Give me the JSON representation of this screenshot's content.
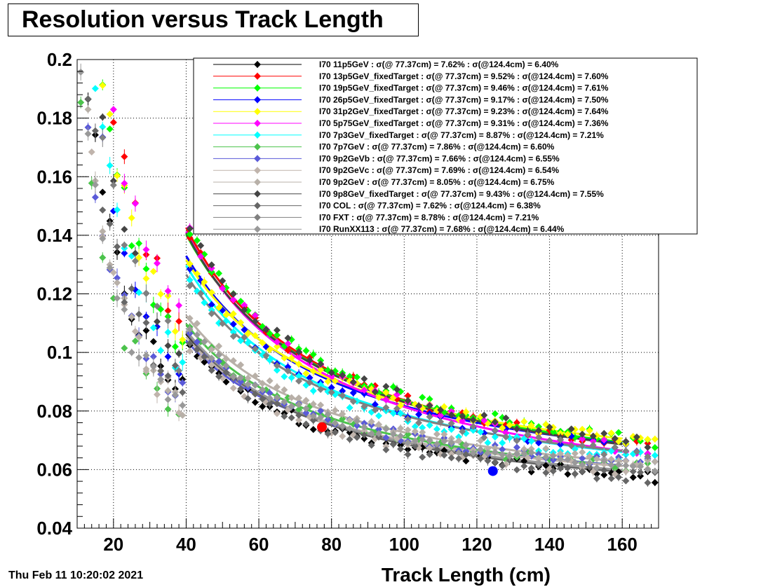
{
  "chart_data": {
    "type": "scatter",
    "title": "Resolution versus Track Length",
    "xlabel": "Track Length (cm)",
    "ylabel": "",
    "xlim": [
      10,
      170
    ],
    "ylim": [
      0.04,
      0.2
    ],
    "x_ticks": [
      20,
      40,
      60,
      80,
      100,
      120,
      140,
      160
    ],
    "y_ticks": [
      0.04,
      0.06,
      0.08,
      0.1,
      0.12,
      0.14,
      0.16,
      0.18,
      0.2
    ],
    "grid": true,
    "legend_position": "top-right",
    "series": [
      {
        "name": "I70  11p5GeV : σ(@ 77.37cm) =  7.62% : σ(@124.4cm) =  6.40%",
        "color": "#000000",
        "s77": 0.0762,
        "s124": 0.064
      },
      {
        "name": "I70  13p5GeV_fixedTarget : σ(@ 77.37cm) =  9.52% : σ(@124.4cm) =  7.60%",
        "color": "#ff0000",
        "s77": 0.0952,
        "s124": 0.076
      },
      {
        "name": "I70  19p5GeV_fixedTarget : σ(@ 77.37cm) =  9.46% : σ(@124.4cm) =  7.61%",
        "color": "#00ff00",
        "s77": 0.0946,
        "s124": 0.0761
      },
      {
        "name": "I70  26p5GeV_fixedTarget : σ(@ 77.37cm) =  9.17% : σ(@124.4cm) =  7.50%",
        "color": "#0000ff",
        "s77": 0.0917,
        "s124": 0.075
      },
      {
        "name": "I70  31p2GeV_fixedTarget : σ(@ 77.37cm) =  9.23% : σ(@124.4cm) =  7.64%",
        "color": "#ffff00",
        "s77": 0.0923,
        "s124": 0.0764
      },
      {
        "name": "I70  5p75GeV_fixedTarget : σ(@ 77.37cm) =  9.31% : σ(@124.4cm) =  7.36%",
        "color": "#ff00ff",
        "s77": 0.0931,
        "s124": 0.0736
      },
      {
        "name": "I70  7p3GeV_fixedTarget : σ(@ 77.37cm) =  8.87% : σ(@124.4cm) =  7.21%",
        "color": "#00ffff",
        "s77": 0.0887,
        "s124": 0.0721
      },
      {
        "name": "I70  7p7GeV : σ(@ 77.37cm) =  7.86% : σ(@124.4cm) =  6.60%",
        "color": "#4cc34c",
        "s77": 0.0786,
        "s124": 0.066
      },
      {
        "name": "I70  9p2GeVb : σ(@ 77.37cm) =  7.66% : σ(@124.4cm) =  6.55%",
        "color": "#5a5ad8",
        "s77": 0.0766,
        "s124": 0.0655
      },
      {
        "name": "I70  9p2GeVc : σ(@ 77.37cm) =  7.69% : σ(@124.4cm) =  6.54%",
        "color": "#c0b4ac",
        "s77": 0.0769,
        "s124": 0.0654
      },
      {
        "name": "I70  9p2GeV : σ(@ 77.37cm) =  8.05% : σ(@124.4cm) =  6.75%",
        "color": "#b8b0a8",
        "s77": 0.0805,
        "s124": 0.0675
      },
      {
        "name": "I70  9p8GeV_fixedTarget : σ(@ 77.37cm) =  9.43% : σ(@124.4cm) =  7.55%",
        "color": "#444444",
        "s77": 0.0943,
        "s124": 0.0755
      },
      {
        "name": "I70  COL : σ(@ 77.37cm) =  7.62% : σ(@124.4cm) =  6.38%",
        "color": "#666666",
        "s77": 0.0762,
        "s124": 0.0638
      },
      {
        "name": "I70  FXT : σ(@ 77.37cm) =  8.78% : σ(@124.4cm) =  7.21%",
        "color": "#808080",
        "s77": 0.0878,
        "s124": 0.0721
      },
      {
        "name": "I70  RunXX113 : σ(@ 77.37cm) =  7.68% : σ(@124.4cm) =  6.44%",
        "color": "#999999",
        "s77": 0.0768,
        "s124": 0.0644
      }
    ],
    "fit_x_range": [
      40,
      160
    ],
    "highlight_points": [
      {
        "x": 77.37,
        "y": 0.0745,
        "color": "#ff0000"
      },
      {
        "x": 124.4,
        "y": 0.0595,
        "color": "#0000ff"
      }
    ]
  },
  "footer": {
    "date": "Thu Feb 11 10:20:02 2021"
  }
}
